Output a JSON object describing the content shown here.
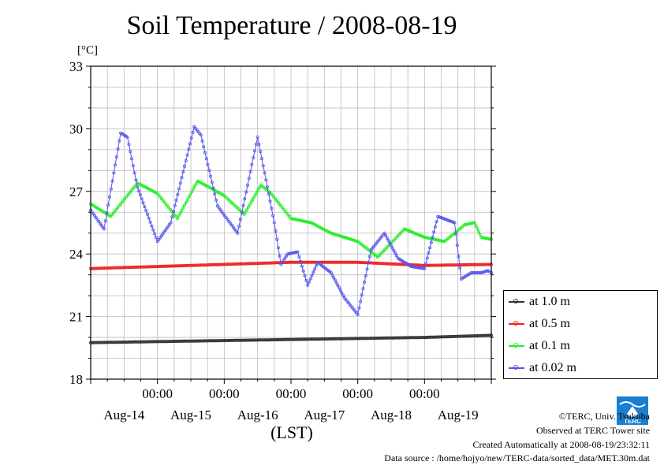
{
  "chart_data": {
    "type": "line",
    "title": "Soil Temperature / 2008-08-19",
    "ylabel": "[°C]",
    "xlabel": "(LST)",
    "ylim": [
      18,
      33
    ],
    "yticks": [
      18,
      21,
      24,
      27,
      30,
      33
    ],
    "xlim": [
      0,
      6
    ],
    "x_tick_labels": [
      "00:00",
      "00:00",
      "00:00",
      "00:00",
      "00:00"
    ],
    "x_date_labels": [
      "Aug-14",
      "Aug-15",
      "Aug-16",
      "Aug-17",
      "Aug-18",
      "Aug-19"
    ],
    "grid": true,
    "legend_position": "right",
    "series": [
      {
        "name": "at 1.0 m",
        "color": "#333333",
        "x": [
          0,
          1,
          2,
          3,
          4,
          5,
          6
        ],
        "y": [
          19.75,
          19.8,
          19.85,
          19.9,
          19.95,
          20.0,
          20.1
        ]
      },
      {
        "name": "at 0.5 m",
        "color": "#ee2222",
        "x": [
          0,
          1,
          2,
          3,
          4,
          5,
          6
        ],
        "y": [
          23.3,
          23.4,
          23.5,
          23.6,
          23.6,
          23.45,
          23.5
        ]
      },
      {
        "name": "at 0.1 m",
        "color": "#22ee22",
        "x": [
          0,
          0.3,
          0.7,
          1.0,
          1.3,
          1.6,
          2.0,
          2.3,
          2.55,
          2.7,
          3.0,
          3.3,
          3.6,
          4.0,
          4.3,
          4.7,
          5.0,
          5.3,
          5.6,
          5.75,
          5.85,
          6.0
        ],
        "y": [
          26.4,
          25.8,
          27.4,
          26.9,
          25.7,
          27.5,
          26.8,
          25.9,
          27.3,
          26.9,
          25.7,
          25.5,
          25.0,
          24.6,
          23.85,
          25.2,
          24.8,
          24.6,
          25.4,
          25.5,
          24.8,
          24.7
        ]
      },
      {
        "name": "at 0.02 m",
        "color": "#5555ee",
        "x": [
          0,
          0.2,
          0.45,
          0.55,
          0.7,
          1.0,
          1.2,
          1.55,
          1.65,
          1.9,
          2.2,
          2.5,
          2.75,
          2.85,
          2.95,
          3.1,
          3.25,
          3.4,
          3.6,
          3.8,
          4.0,
          4.2,
          4.4,
          4.6,
          4.8,
          5.0,
          5.2,
          5.45,
          5.55,
          5.7,
          5.85,
          5.95,
          6.0
        ],
        "y": [
          26.1,
          25.2,
          29.8,
          29.6,
          27.2,
          24.6,
          25.5,
          30.1,
          29.7,
          26.3,
          25.0,
          29.6,
          25.5,
          23.5,
          24.0,
          24.1,
          22.5,
          23.6,
          23.1,
          21.9,
          21.1,
          24.2,
          25.0,
          23.8,
          23.4,
          23.3,
          25.8,
          25.5,
          22.8,
          23.1,
          23.1,
          23.2,
          23.1
        ]
      }
    ]
  },
  "legend": [
    {
      "label": "at 1.0 m",
      "color": "#333333"
    },
    {
      "label": "at 0.5 m",
      "color": "#ee2222"
    },
    {
      "label": "at 0.1 m",
      "color": "#22ee22"
    },
    {
      "label": "at 0.02 m",
      "color": "#5555ee"
    }
  ],
  "footer": {
    "copyright": "©TERC, Univ. Tsukuba",
    "observed": "Observed at TERC Tower site",
    "created": "Created Automatically at 2008-08-19/23:32:11",
    "source": "Data source : /home/hojyo/new/TERC-data/sorted_data/MET.30m.dat"
  },
  "logo": {
    "text": "TERC",
    "color": "#1a7fd0"
  }
}
